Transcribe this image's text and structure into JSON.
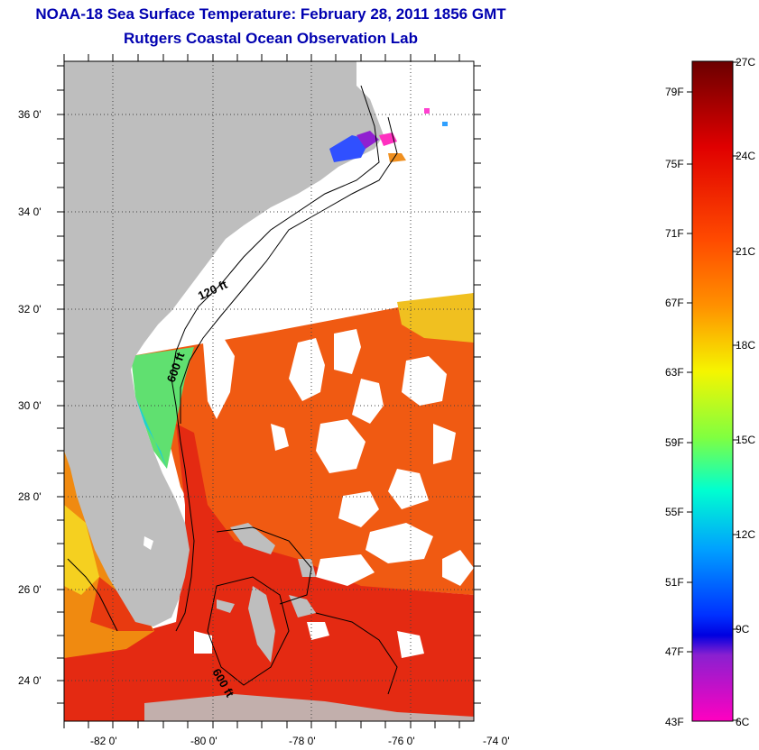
{
  "title": "NOAA-18 Sea Surface Temperature:  February 28, 2011 1856 GMT",
  "subtitle": "Rutgers Coastal Ocean Observation Lab",
  "map": {
    "lat_labels": [
      "36 0'",
      "34 0'",
      "32 0'",
      "30 0'",
      "28 0'",
      "26 0'",
      "24 0'"
    ],
    "lon_labels": [
      "-82 0'",
      "-80 0'",
      "-78 0'",
      "-76 0'",
      "-74 0'"
    ],
    "contour_labels": [
      "120 ft",
      "600 ft",
      "600 ft"
    ],
    "colors": {
      "land": "#bebebe",
      "ocean_warm": "#e83010",
      "ocean_mid": "#f05a10",
      "cloud": "#ffffff"
    }
  },
  "colorbar": {
    "f_labels": [
      "79F",
      "75F",
      "71F",
      "67F",
      "63F",
      "59F",
      "55F",
      "51F",
      "47F",
      "43F"
    ],
    "c_labels": [
      "27C",
      "24C",
      "21C",
      "18C",
      "15C",
      "12C",
      "9C",
      "6C"
    ],
    "gradient": [
      "#8b0000",
      "#e00000",
      "#ff4000",
      "#ff8c00",
      "#ffd000",
      "#f0ff00",
      "#90ff40",
      "#00ffd0",
      "#00a0ff",
      "#0020ff",
      "#8000c0",
      "#ff00c0"
    ]
  }
}
